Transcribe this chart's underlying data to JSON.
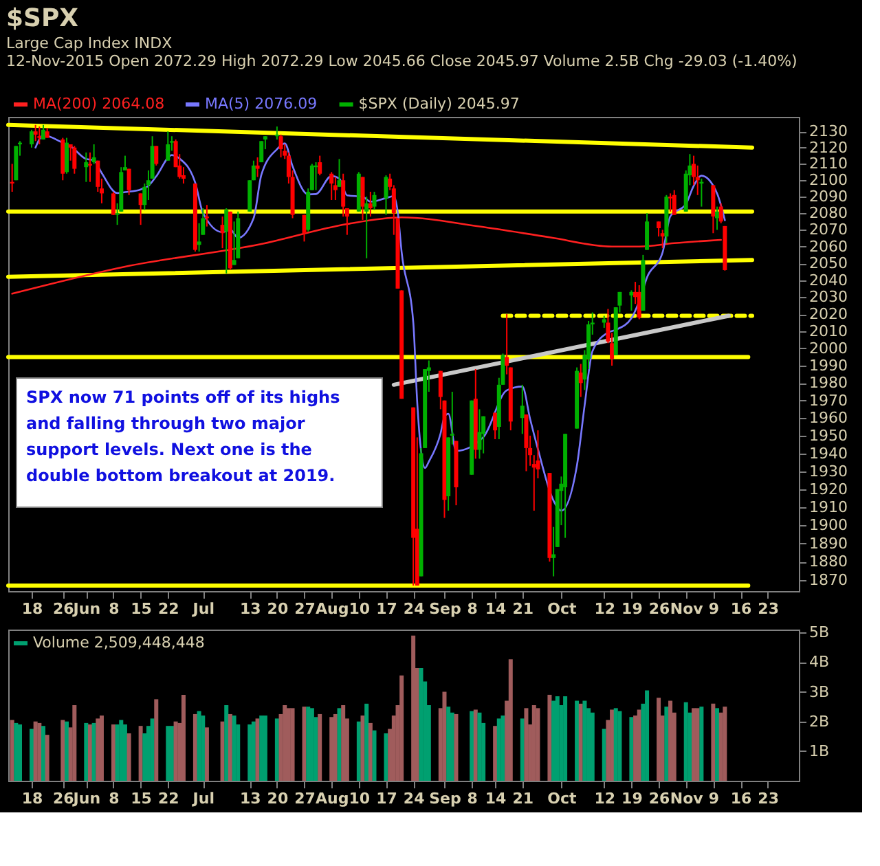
{
  "chart_data": [
    {
      "type": "candlestick",
      "title": "$SPX",
      "subtitle": "Large Cap Index INDX",
      "annotations": [
        "12-Nov-2015   Open 2072.29   High 2072.29   Low 2045.66   Close 2045.97   Volume 2.5B   Chg -29.03 (-1.40%)",
        "SPX now 71 points off of its highs and falling through two major support levels. Next one is the double bottom breakout at 2019."
      ],
      "x": [
        "2015-05-13",
        "2015-05-14",
        "2015-05-15",
        "2015-05-18",
        "2015-05-19",
        "2015-05-20",
        "2015-05-21",
        "2015-05-22",
        "2015-05-26",
        "2015-05-27",
        "2015-05-28",
        "2015-05-29",
        "2015-06-01",
        "2015-06-02",
        "2015-06-03",
        "2015-06-04",
        "2015-06-05",
        "2015-06-08",
        "2015-06-09",
        "2015-06-10",
        "2015-06-11",
        "2015-06-12",
        "2015-06-15",
        "2015-06-16",
        "2015-06-17",
        "2015-06-18",
        "2015-06-19",
        "2015-06-22",
        "2015-06-23",
        "2015-06-24",
        "2015-06-25",
        "2015-06-26",
        "2015-06-29",
        "2015-06-30",
        "2015-07-01",
        "2015-07-02",
        "2015-07-06",
        "2015-07-07",
        "2015-07-08",
        "2015-07-09",
        "2015-07-10",
        "2015-07-13",
        "2015-07-14",
        "2015-07-15",
        "2015-07-16",
        "2015-07-17",
        "2015-07-20",
        "2015-07-21",
        "2015-07-22",
        "2015-07-23",
        "2015-07-24",
        "2015-07-27",
        "2015-07-28",
        "2015-07-29",
        "2015-07-30",
        "2015-07-31",
        "2015-08-03",
        "2015-08-04",
        "2015-08-05",
        "2015-08-06",
        "2015-08-07",
        "2015-08-10",
        "2015-08-11",
        "2015-08-12",
        "2015-08-13",
        "2015-08-14",
        "2015-08-17",
        "2015-08-18",
        "2015-08-19",
        "2015-08-20",
        "2015-08-21",
        "2015-08-24",
        "2015-08-25",
        "2015-08-26",
        "2015-08-27",
        "2015-08-28",
        "2015-08-31",
        "2015-09-01",
        "2015-09-02",
        "2015-09-03",
        "2015-09-04",
        "2015-09-08",
        "2015-09-09",
        "2015-09-10",
        "2015-09-11",
        "2015-09-14",
        "2015-09-15",
        "2015-09-16",
        "2015-09-17",
        "2015-09-18",
        "2015-09-21",
        "2015-09-22",
        "2015-09-23",
        "2015-09-24",
        "2015-09-25",
        "2015-09-28",
        "2015-09-29",
        "2015-09-30",
        "2015-10-01",
        "2015-10-02",
        "2015-10-05",
        "2015-10-06",
        "2015-10-07",
        "2015-10-08",
        "2015-10-09",
        "2015-10-12",
        "2015-10-13",
        "2015-10-14",
        "2015-10-15",
        "2015-10-16",
        "2015-10-19",
        "2015-10-20",
        "2015-10-21",
        "2015-10-22",
        "2015-10-23",
        "2015-10-26",
        "2015-10-27",
        "2015-10-28",
        "2015-10-29",
        "2015-10-30",
        "2015-11-02",
        "2015-11-03",
        "2015-11-04",
        "2015-11-05",
        "2015-11-06",
        "2015-11-09",
        "2015-11-10",
        "2015-11-11",
        "2015-11-12"
      ],
      "xlim": [
        "2015-05-12",
        "2015-12-01"
      ],
      "xticks": [
        {
          "value": "2015-05-18",
          "label": "18"
        },
        {
          "value": "2015-05-26",
          "label": "26"
        },
        {
          "value": "2015-06-01",
          "label": "Jun"
        },
        {
          "value": "2015-06-08",
          "label": "8"
        },
        {
          "value": "2015-06-15",
          "label": "15"
        },
        {
          "value": "2015-06-22",
          "label": "22"
        },
        {
          "value": "2015-07-01",
          "label": "Jul"
        },
        {
          "value": "2015-07-13",
          "label": "13"
        },
        {
          "value": "2015-07-20",
          "label": "20"
        },
        {
          "value": "2015-07-27",
          "label": "27"
        },
        {
          "value": "2015-08-03",
          "label": "Aug"
        },
        {
          "value": "2015-08-10",
          "label": "10"
        },
        {
          "value": "2015-08-17",
          "label": "17"
        },
        {
          "value": "2015-08-24",
          "label": "24"
        },
        {
          "value": "2015-09-01",
          "label": "Sep"
        },
        {
          "value": "2015-09-08",
          "label": "8"
        },
        {
          "value": "2015-09-14",
          "label": "14"
        },
        {
          "value": "2015-09-21",
          "label": "21"
        },
        {
          "value": "2015-10-01",
          "label": "Oct"
        },
        {
          "value": "2015-10-12",
          "label": "12"
        },
        {
          "value": "2015-10-19",
          "label": "19"
        },
        {
          "value": "2015-10-26",
          "label": "26"
        },
        {
          "value": "2015-11-02",
          "label": "Nov"
        },
        {
          "value": "2015-11-09",
          "label": "9"
        },
        {
          "value": "2015-11-16",
          "label": "16"
        },
        {
          "value": "2015-11-23",
          "label": "23"
        }
      ],
      "ylim": [
        1864,
        2139
      ],
      "log": "y",
      "yticks": [
        1870,
        1880,
        1890,
        1900,
        1910,
        1920,
        1930,
        1940,
        1950,
        1960,
        1970,
        1980,
        1990,
        2000,
        2010,
        2020,
        2030,
        2040,
        2050,
        2060,
        2070,
        2080,
        2090,
        2100,
        2110,
        2120,
        2130
      ],
      "legend": "top left",
      "series": [
        {
          "type": "line",
          "color": "#ffff00",
          "x": [
            "2015-05-12",
            "2015-11-19"
          ],
          "values": [
            2134,
            2120
          ]
        },
        {
          "type": "line",
          "color": "#ffff00",
          "x": [
            "2015-05-12",
            "2015-11-19"
          ],
          "values": [
            2081,
            2081
          ]
        },
        {
          "type": "line",
          "color": "#ffff00",
          "x": [
            "2015-05-12",
            "2015-11-19"
          ],
          "values": [
            2042,
            2052
          ]
        },
        {
          "type": "line",
          "color": "#ffff00",
          "line_style": "dashed",
          "x": [
            "2015-09-16",
            "2015-11-19"
          ],
          "values": [
            2019,
            2019
          ]
        },
        {
          "type": "line",
          "color": "#ffff00",
          "x": [
            "2015-05-12",
            "2015-11-18"
          ],
          "values": [
            1995,
            1995
          ]
        },
        {
          "type": "line",
          "color": "#ffff00",
          "x": [
            "2015-05-12",
            "2015-11-18"
          ],
          "values": [
            1867,
            1867
          ]
        },
        {
          "type": "line",
          "color": "#c8c8c8",
          "x": [
            "2015-08-19",
            "2015-11-13"
          ],
          "values": [
            1979,
            2019
          ]
        },
        {
          "type": "line",
          "name": "MA(200) 2064.08",
          "color": "#ff2020",
          "x": [
            "2015-05-13",
            "2015-06-11",
            "2015-07-16",
            "2015-08-07",
            "2015-08-21",
            "2015-09-10",
            "2015-09-28",
            "2015-10-14",
            "2015-10-21",
            "2015-10-30",
            "2015-11-11"
          ],
          "values": [
            2032,
            2048,
            2061.5,
            2073.5,
            2077.5,
            2072,
            2065.5,
            2060,
            2060,
            2062,
            2064
          ]
        },
        {
          "type": "line",
          "name": "MA(5) 2076.09",
          "color": "#7878ff",
          "x": [
            "2015-05-19",
            "2015-05-21",
            "2015-05-26",
            "2015-05-28",
            "2015-06-01",
            "2015-06-03",
            "2015-06-05",
            "2015-06-09",
            "2015-06-11",
            "2015-06-15",
            "2015-06-17",
            "2015-06-19",
            "2015-06-23",
            "2015-06-25",
            "2015-06-29",
            "2015-07-01",
            "2015-07-06",
            "2015-07-08",
            "2015-07-10",
            "2015-07-14",
            "2015-07-16",
            "2015-07-20",
            "2015-07-22",
            "2015-07-24",
            "2015-07-28",
            "2015-07-30",
            "2015-08-03",
            "2015-08-05",
            "2015-08-07",
            "2015-08-11",
            "2015-08-13",
            "2015-08-17",
            "2015-08-19",
            "2015-08-20",
            "2015-08-21",
            "2015-08-24",
            "2015-08-25",
            "2015-08-26",
            "2015-08-27",
            "2015-08-28",
            "2015-08-31",
            "2015-09-01",
            "2015-09-02",
            "2015-09-04",
            "2015-09-11",
            "2015-09-17",
            "2015-09-21",
            "2015-09-23",
            "2015-09-25",
            "2015-09-29",
            "2015-10-01",
            "2015-10-05",
            "2015-10-07",
            "2015-10-09",
            "2015-10-13",
            "2015-10-15",
            "2015-10-19",
            "2015-10-21",
            "2015-10-23",
            "2015-10-27",
            "2015-10-29",
            "2015-11-02",
            "2015-11-04",
            "2015-11-06",
            "2015-11-10",
            "2015-11-12"
          ],
          "values": [
            2120,
            2127.6,
            2123,
            2120.8,
            2113,
            2112.2,
            2104.4,
            2092.2,
            2092.8,
            2094.4,
            2096.6,
            2102.4,
            2115.4,
            2113.2,
            2098.6,
            2080.2,
            2068.6,
            2070.2,
            2065.2,
            2077,
            2103.4,
            2119,
            2122.6,
            2108.6,
            2091.4,
            2091.6,
            2102.6,
            2101,
            2090.8,
            2090,
            2087,
            2089.2,
            2090.4,
            2080.8,
            2056.8,
            2015,
            1969.2,
            1941.2,
            1931.8,
            1935.4,
            1951.2,
            1960.6,
            1962.4,
            1941.4,
            1949.2,
            1975.8,
            1978,
            1959.4,
            1942.4,
            1913.6,
            1908,
            1933,
            1967.4,
            1998.4,
            2009.2,
            2010.8,
            2017.6,
            2027.6,
            2041.6,
            2056.4,
            2078.2,
            2085.6,
            2096.6,
            2102.8,
            2092,
            2075.8
          ]
        },
        {
          "type": "candlestick",
          "name": "$SPX (Daily) 2045.97",
          "color": "#00b000",
          "ohlc": [
            [
              2099,
              2110,
              2093,
              2098
            ],
            [
              2100,
              2121,
              2100,
              2121
            ],
            [
              2122,
              2124,
              2115,
              2123
            ],
            [
              2122,
              2131,
              2120,
              2130
            ],
            [
              2130,
              2134,
              2124,
              2128
            ],
            [
              2127,
              2133,
              2122,
              2126
            ],
            [
              2125,
              2134,
              2125,
              2131
            ],
            [
              2130,
              2132,
              2126,
              2126
            ],
            [
              2125,
              2126,
              2100,
              2104
            ],
            [
              2105,
              2126,
              2104,
              2123
            ],
            [
              2122,
              2122,
              2112,
              2120
            ],
            [
              2120,
              2121,
              2104,
              2107
            ],
            [
              2108,
              2117,
              2099,
              2111
            ],
            [
              2110,
              2117,
              2099,
              2109
            ],
            [
              2111,
              2122,
              2110,
              2114
            ],
            [
              2112,
              2112,
              2093,
              2096
            ],
            [
              2095,
              2101,
              2086,
              2092
            ],
            [
              2092,
              2093,
              2079,
              2079
            ],
            [
              2079,
              2086,
              2073,
              2080
            ],
            [
              2081,
              2108,
              2081,
              2105
            ],
            [
              2106,
              2115,
              2106,
              2108
            ],
            [
              2107,
              2107,
              2091,
              2094
            ],
            [
              2092,
              2092,
              2073,
              2085
            ],
            [
              2085,
              2098,
              2082,
              2096
            ],
            [
              2097,
              2106,
              2088,
              2100
            ],
            [
              2101,
              2127,
              2101,
              2121
            ],
            [
              2121,
              2121,
              2109,
              2110
            ],
            [
              2112,
              2130,
              2112,
              2122
            ],
            [
              2123,
              2127,
              2118,
              2124
            ],
            [
              2124,
              2125,
              2108,
              2108
            ],
            [
              2109,
              2116,
              2101,
              2102
            ],
            [
              2103,
              2108,
              2098,
              2101
            ],
            [
              2098,
              2098,
              2057,
              2058
            ],
            [
              2061,
              2074,
              2057,
              2063
            ],
            [
              2067,
              2083,
              2067,
              2077
            ],
            [
              2078,
              2085,
              2072,
              2077
            ],
            [
              2073,
              2078,
              2059,
              2068
            ],
            [
              2069,
              2083,
              2044,
              2082
            ],
            [
              2081,
              2081,
              2046,
              2047
            ],
            [
              2049,
              2075,
              2049,
              2052
            ],
            [
              2053,
              2081,
              2053,
              2077
            ],
            [
              2081,
              2100,
              2081,
              2100
            ],
            [
              2100,
              2112,
              2100,
              2109
            ],
            [
              2109,
              2114,
              2102,
              2107
            ],
            [
              2111,
              2124,
              2111,
              2124
            ],
            [
              2125,
              2127,
              2119,
              2127
            ],
            [
              2127,
              2133,
              2125,
              2128
            ],
            [
              2127,
              2128,
              2114,
              2119
            ],
            [
              2118,
              2122,
              2113,
              2115
            ],
            [
              2115,
              2117,
              2098,
              2102
            ],
            [
              2102,
              2106,
              2077,
              2079
            ],
            [
              2079,
              2079,
              2063,
              2068
            ],
            [
              2070,
              2095,
              2069,
              2093
            ],
            [
              2094,
              2110,
              2094,
              2109
            ],
            [
              2108,
              2111,
              2094,
              2109
            ],
            [
              2111,
              2115,
              2103,
              2104
            ],
            [
              2104,
              2105,
              2088,
              2098
            ],
            [
              2097,
              2102,
              2088,
              2094
            ],
            [
              2096,
              2113,
              2096,
              2100
            ],
            [
              2100,
              2104,
              2078,
              2084
            ],
            [
              2083,
              2083,
              2067,
              2078
            ],
            [
              2081,
              2105,
              2081,
              2104
            ],
            [
              2102,
              2102,
              2076,
              2084
            ],
            [
              2081,
              2090,
              2053,
              2086
            ],
            [
              2086,
              2093,
              2078,
              2083
            ],
            [
              2084,
              2093,
              2082,
              2091
            ],
            [
              2089,
              2103,
              2079,
              2102
            ],
            [
              2101,
              2104,
              2094,
              2096
            ],
            [
              2095,
              2097,
              2067,
              2080
            ],
            [
              2077,
              2077,
              2035,
              2035
            ],
            [
              2034,
              2034,
              1971,
              1971
            ],
            [
              1966,
              1966,
              1867,
              1893
            ],
            [
              1898,
              1949,
              1867,
              1867
            ],
            [
              1872,
              1943,
              1872,
              1940
            ],
            [
              1943,
              1988,
              1943,
              1988
            ],
            [
              1987,
              1993,
              1975,
              1989
            ],
            [
              1987,
              1987,
              1965,
              1972
            ],
            [
              1970,
              1970,
              1904,
              1914
            ],
            [
              1916,
              1949,
              1908,
              1949
            ],
            [
              1950,
              1975,
              1945,
              1951
            ],
            [
              1947,
              1947,
              1911,
              1921
            ],
            [
              1928,
              1970,
              1928,
              1970
            ],
            [
              1971,
              1988,
              1937,
              1942
            ],
            [
              1942,
              1965,
              1937,
              1952
            ],
            [
              1951,
              1961,
              1940,
              1961
            ],
            [
              1963,
              1963,
              1948,
              1953
            ],
            [
              1955,
              1983,
              1948,
              1979
            ],
            [
              1979,
              1997,
              1979,
              1996
            ],
            [
              1995,
              2020,
              1985,
              1990
            ],
            [
              1989,
              1989,
              1953,
              1958
            ],
            [
              1960,
              1979,
              1951,
              1967
            ],
            [
              1962,
              1962,
              1930,
              1943
            ],
            [
              1943,
              1950,
              1933,
              1939
            ],
            [
              1934,
              1939,
              1908,
              1932
            ],
            [
              1936,
              1953,
              1926,
              1931
            ],
            [
              1929,
              1929,
              1880,
              1882
            ],
            [
              1882,
              1899,
              1872,
              1884
            ],
            [
              1888,
              1920,
              1888,
              1920
            ],
            [
              1919,
              1927,
              1900,
              1923
            ],
            [
              1921,
              1951,
              1893,
              1951
            ],
            [
              1954,
              1989,
              1954,
              1987
            ],
            [
              1986,
              1991,
              1972,
              1980
            ],
            [
              1982,
              1999,
              1976,
              1996
            ],
            [
              1994,
              2016,
              1988,
              2014
            ],
            [
              2014,
              2021,
              2008,
              2015
            ],
            [
              2015,
              2019,
              2012,
              2017
            ],
            [
              2015,
              2023,
              2003,
              2004
            ],
            [
              2003,
              2009,
              1990,
              1994
            ],
            [
              1996,
              2024,
              1996,
              2024
            ],
            [
              2025,
              2033,
              2021,
              2033
            ],
            [
              2031,
              2034,
              2022,
              2033
            ],
            [
              2033,
              2039,
              2026,
              2030
            ],
            [
              2033,
              2037,
              2017,
              2018
            ],
            [
              2022,
              2055,
              2022,
              2052
            ],
            [
              2058,
              2080,
              2058,
              2075
            ],
            [
              2075,
              2075,
              2066,
              2071
            ],
            [
              2068,
              2070,
              2059,
              2066
            ],
            [
              2066,
              2091,
              2062,
              2090
            ],
            [
              2090,
              2092,
              2081,
              2089
            ],
            [
              2091,
              2094,
              2079,
              2079
            ],
            [
              2081,
              2106,
              2081,
              2104
            ],
            [
              2103,
              2116,
              2097,
              2109
            ],
            [
              2110,
              2115,
              2097,
              2102
            ],
            [
              2102,
              2109,
              2091,
              2100
            ],
            [
              2098,
              2101,
              2084,
              2099
            ],
            [
              2097,
              2097,
              2068,
              2078
            ],
            [
              2077,
              2084,
              2070,
              2081
            ],
            [
              2084,
              2086,
              2074,
              2075
            ],
            [
              2072.29,
              2072.29,
              2045.66,
              2045.97
            ]
          ],
          "colors": [
            "#ff0000",
            "#00b000",
            "#00b000",
            "#00b000",
            "#ff0000",
            "#ff0000",
            "#00b000",
            "#ff0000",
            "#ff0000",
            "#00b000",
            "#ff0000",
            "#ff0000",
            "#00b000",
            "#ff0000",
            "#00b000",
            "#ff0000",
            "#ff0000",
            "#ff0000",
            "#00b000",
            "#00b000",
            "#00b000",
            "#ff0000",
            "#ff0000",
            "#00b000",
            "#00b000",
            "#00b000",
            "#ff0000",
            "#00b000",
            "#00b000",
            "#ff0000",
            "#ff0000",
            "#ff0000",
            "#ff0000",
            "#00b000",
            "#00b000",
            "#ff0000",
            "#ff0000",
            "#00b000",
            "#ff0000",
            "#00b000",
            "#00b000",
            "#00b000",
            "#00b000",
            "#ff0000",
            "#00b000",
            "#00b000",
            "#00b000",
            "#ff0000",
            "#ff0000",
            "#ff0000",
            "#ff0000",
            "#ff0000",
            "#00b000",
            "#00b000",
            "#00b000",
            "#ff0000",
            "#ff0000",
            "#ff0000",
            "#00b000",
            "#ff0000",
            "#ff0000",
            "#00b000",
            "#ff0000",
            "#00b000",
            "#ff0000",
            "#00b000",
            "#00b000",
            "#ff0000",
            "#ff0000",
            "#ff0000",
            "#ff0000",
            "#ff0000",
            "#ff0000",
            "#00b000",
            "#00b000",
            "#00b000",
            "#ff0000",
            "#ff0000",
            "#00b000",
            "#00b000",
            "#ff0000",
            "#00b000",
            "#ff0000",
            "#00b000",
            "#00b000",
            "#ff0000",
            "#00b000",
            "#00b000",
            "#ff0000",
            "#ff0000",
            "#00b000",
            "#ff0000",
            "#ff0000",
            "#ff0000",
            "#ff0000",
            "#ff0000",
            "#00b000",
            "#00b000",
            "#00b000",
            "#00b000",
            "#00b000",
            "#ff0000",
            "#00b000",
            "#00b000",
            "#00b000",
            "#00b000",
            "#ff0000",
            "#ff0000",
            "#00b000",
            "#00b000",
            "#00b000",
            "#ff0000",
            "#ff0000",
            "#00b000",
            "#00b000",
            "#ff0000",
            "#ff0000",
            "#00b000",
            "#ff0000",
            "#ff0000",
            "#00b000",
            "#00b000",
            "#ff0000",
            "#ff0000",
            "#00b000",
            "#ff0000",
            "#00b000",
            "#ff0000",
            "#ff0000"
          ]
        }
      ]
    },
    {
      "type": "bar",
      "x": [
        "2015-05-13",
        "2015-05-14",
        "2015-05-15",
        "2015-05-18",
        "2015-05-19",
        "2015-05-20",
        "2015-05-21",
        "2015-05-22",
        "2015-05-26",
        "2015-05-27",
        "2015-05-28",
        "2015-05-29",
        "2015-06-01",
        "2015-06-02",
        "2015-06-03",
        "2015-06-04",
        "2015-06-05",
        "2015-06-08",
        "2015-06-09",
        "2015-06-10",
        "2015-06-11",
        "2015-06-12",
        "2015-06-15",
        "2015-06-16",
        "2015-06-17",
        "2015-06-18",
        "2015-06-19",
        "2015-06-22",
        "2015-06-23",
        "2015-06-24",
        "2015-06-25",
        "2015-06-26",
        "2015-06-29",
        "2015-06-30",
        "2015-07-01",
        "2015-07-02",
        "2015-07-06",
        "2015-07-07",
        "2015-07-08",
        "2015-07-09",
        "2015-07-10",
        "2015-07-13",
        "2015-07-14",
        "2015-07-15",
        "2015-07-16",
        "2015-07-17",
        "2015-07-20",
        "2015-07-21",
        "2015-07-22",
        "2015-07-23",
        "2015-07-24",
        "2015-07-27",
        "2015-07-28",
        "2015-07-29",
        "2015-07-30",
        "2015-07-31",
        "2015-08-03",
        "2015-08-04",
        "2015-08-05",
        "2015-08-06",
        "2015-08-07",
        "2015-08-10",
        "2015-08-11",
        "2015-08-12",
        "2015-08-13",
        "2015-08-14",
        "2015-08-17",
        "2015-08-18",
        "2015-08-19",
        "2015-08-20",
        "2015-08-21",
        "2015-08-24",
        "2015-08-25",
        "2015-08-26",
        "2015-08-27",
        "2015-08-28",
        "2015-08-31",
        "2015-09-01",
        "2015-09-02",
        "2015-09-03",
        "2015-09-04",
        "2015-09-08",
        "2015-09-09",
        "2015-09-10",
        "2015-09-11",
        "2015-09-14",
        "2015-09-15",
        "2015-09-16",
        "2015-09-17",
        "2015-09-18",
        "2015-09-21",
        "2015-09-22",
        "2015-09-23",
        "2015-09-24",
        "2015-09-25",
        "2015-09-28",
        "2015-09-29",
        "2015-09-30",
        "2015-10-01",
        "2015-10-02",
        "2015-10-05",
        "2015-10-06",
        "2015-10-07",
        "2015-10-08",
        "2015-10-09",
        "2015-10-12",
        "2015-10-13",
        "2015-10-14",
        "2015-10-15",
        "2015-10-16",
        "2015-10-19",
        "2015-10-20",
        "2015-10-21",
        "2015-10-22",
        "2015-10-23",
        "2015-10-26",
        "2015-10-27",
        "2015-10-28",
        "2015-10-29",
        "2015-10-30",
        "2015-11-02",
        "2015-11-03",
        "2015-11-04",
        "2015-11-05",
        "2015-11-06",
        "2015-11-09",
        "2015-11-10",
        "2015-11-11",
        "2015-11-12"
      ],
      "xlim": [
        "2015-05-12",
        "2015-12-01"
      ],
      "xticks": [
        {
          "value": "2015-05-18",
          "label": "18"
        },
        {
          "value": "2015-05-26",
          "label": "26"
        },
        {
          "value": "2015-06-01",
          "label": "Jun"
        },
        {
          "value": "2015-06-08",
          "label": "8"
        },
        {
          "value": "2015-06-15",
          "label": "15"
        },
        {
          "value": "2015-06-22",
          "label": "22"
        },
        {
          "value": "2015-07-01",
          "label": "Jul"
        },
        {
          "value": "2015-07-13",
          "label": "13"
        },
        {
          "value": "2015-07-20",
          "label": "20"
        },
        {
          "value": "2015-07-27",
          "label": "27"
        },
        {
          "value": "2015-08-03",
          "label": "Aug"
        },
        {
          "value": "2015-08-10",
          "label": "10"
        },
        {
          "value": "2015-08-17",
          "label": "17"
        },
        {
          "value": "2015-08-24",
          "label": "24"
        },
        {
          "value": "2015-09-01",
          "label": "Sep"
        },
        {
          "value": "2015-09-08",
          "label": "8"
        },
        {
          "value": "2015-09-14",
          "label": "14"
        },
        {
          "value": "2015-09-21",
          "label": "21"
        },
        {
          "value": "2015-10-01",
          "label": "Oct"
        },
        {
          "value": "2015-10-12",
          "label": "12"
        },
        {
          "value": "2015-10-19",
          "label": "19"
        },
        {
          "value": "2015-10-26",
          "label": "26"
        },
        {
          "value": "2015-11-02",
          "label": "Nov"
        },
        {
          "value": "2015-11-09",
          "label": "9"
        },
        {
          "value": "2015-11-16",
          "label": "16"
        },
        {
          "value": "2015-11-23",
          "label": "23"
        }
      ],
      "ylim": [
        0,
        5.1
      ],
      "yticks": [
        {
          "value": 1,
          "label": "1B"
        },
        {
          "value": 2,
          "label": "2B"
        },
        {
          "value": 3,
          "label": "3B"
        },
        {
          "value": 4,
          "label": "4B"
        },
        {
          "value": 5,
          "label": "5B"
        }
      ],
      "legend": "top left",
      "series": [
        {
          "name": "Volume 2,509,448,448",
          "color": "#00a070",
          "values": [
            2.05,
            1.95,
            1.9,
            1.75,
            2.0,
            1.95,
            1.85,
            1.55,
            2.05,
            2.0,
            1.8,
            2.55,
            1.95,
            1.9,
            1.95,
            2.1,
            2.2,
            1.9,
            1.9,
            2.05,
            1.9,
            1.6,
            1.85,
            1.6,
            1.85,
            2.1,
            2.75,
            1.85,
            1.85,
            2.0,
            1.95,
            2.9,
            2.25,
            2.35,
            2.2,
            1.8,
            2.0,
            2.55,
            2.25,
            2.2,
            1.9,
            1.9,
            2.0,
            2.1,
            2.2,
            2.2,
            2.1,
            2.25,
            2.55,
            2.45,
            2.45,
            2.5,
            2.5,
            2.45,
            2.15,
            2.25,
            2.15,
            2.25,
            2.45,
            2.55,
            2.1,
            2.0,
            2.2,
            2.6,
            1.95,
            1.7,
            1.6,
            1.75,
            2.2,
            2.55,
            3.55,
            4.9,
            3.8,
            3.8,
            3.35,
            2.55,
            2.45,
            3.0,
            2.5,
            2.3,
            2.25,
            2.35,
            2.4,
            2.3,
            1.95,
            1.85,
            2.1,
            2.2,
            2.7,
            4.1,
            2.1,
            2.45,
            1.9,
            2.55,
            2.45,
            2.9,
            2.7,
            2.85,
            2.55,
            2.85,
            2.7,
            2.6,
            2.7,
            2.45,
            2.3,
            1.75,
            2.05,
            2.4,
            2.45,
            2.35,
            2.15,
            2.2,
            2.4,
            2.6,
            3.05,
            2.8,
            2.2,
            2.5,
            2.7,
            2.3,
            2.65,
            2.3,
            2.45,
            2.45,
            2.5,
            2.6,
            2.45,
            2.3,
            2.5
          ],
          "colors": [
            "#a05c5c",
            "#00a070",
            "#00a070",
            "#00a070",
            "#a05c5c",
            "#a05c5c",
            "#00a070",
            "#a05c5c",
            "#a05c5c",
            "#00a070",
            "#a05c5c",
            "#a05c5c",
            "#00a070",
            "#a05c5c",
            "#00a070",
            "#a05c5c",
            "#a05c5c",
            "#a05c5c",
            "#00a070",
            "#00a070",
            "#00a070",
            "#a05c5c",
            "#a05c5c",
            "#00a070",
            "#00a070",
            "#00a070",
            "#a05c5c",
            "#00a070",
            "#00a070",
            "#a05c5c",
            "#a05c5c",
            "#a05c5c",
            "#a05c5c",
            "#00a070",
            "#00a070",
            "#a05c5c",
            "#a05c5c",
            "#00a070",
            "#a05c5c",
            "#00a070",
            "#00a070",
            "#00a070",
            "#00a070",
            "#a05c5c",
            "#00a070",
            "#00a070",
            "#00a070",
            "#a05c5c",
            "#a05c5c",
            "#a05c5c",
            "#a05c5c",
            "#a05c5c",
            "#00a070",
            "#00a070",
            "#00a070",
            "#a05c5c",
            "#a05c5c",
            "#a05c5c",
            "#00a070",
            "#a05c5c",
            "#a05c5c",
            "#00a070",
            "#a05c5c",
            "#00a070",
            "#a05c5c",
            "#00a070",
            "#00a070",
            "#a05c5c",
            "#a05c5c",
            "#a05c5c",
            "#a05c5c",
            "#a05c5c",
            "#a05c5c",
            "#00a070",
            "#00a070",
            "#00a070",
            "#a05c5c",
            "#a05c5c",
            "#00a070",
            "#00a070",
            "#a05c5c",
            "#00a070",
            "#a05c5c",
            "#00a070",
            "#00a070",
            "#a05c5c",
            "#00a070",
            "#00a070",
            "#a05c5c",
            "#a05c5c",
            "#00a070",
            "#a05c5c",
            "#a05c5c",
            "#a05c5c",
            "#a05c5c",
            "#a05c5c",
            "#00a070",
            "#00a070",
            "#00a070",
            "#00a070",
            "#00a070",
            "#a05c5c",
            "#00a070",
            "#00a070",
            "#00a070",
            "#00a070",
            "#a05c5c",
            "#a05c5c",
            "#00a070",
            "#00a070",
            "#00a070",
            "#a05c5c",
            "#a05c5c",
            "#00a070",
            "#00a070",
            "#a05c5c",
            "#a05c5c",
            "#00a070",
            "#a05c5c",
            "#a05c5c",
            "#00a070",
            "#00a070",
            "#a05c5c",
            "#a05c5c",
            "#00a070",
            "#a05c5c",
            "#00a070",
            "#a05c5c",
            "#a05c5c"
          ]
        }
      ]
    }
  ]
}
